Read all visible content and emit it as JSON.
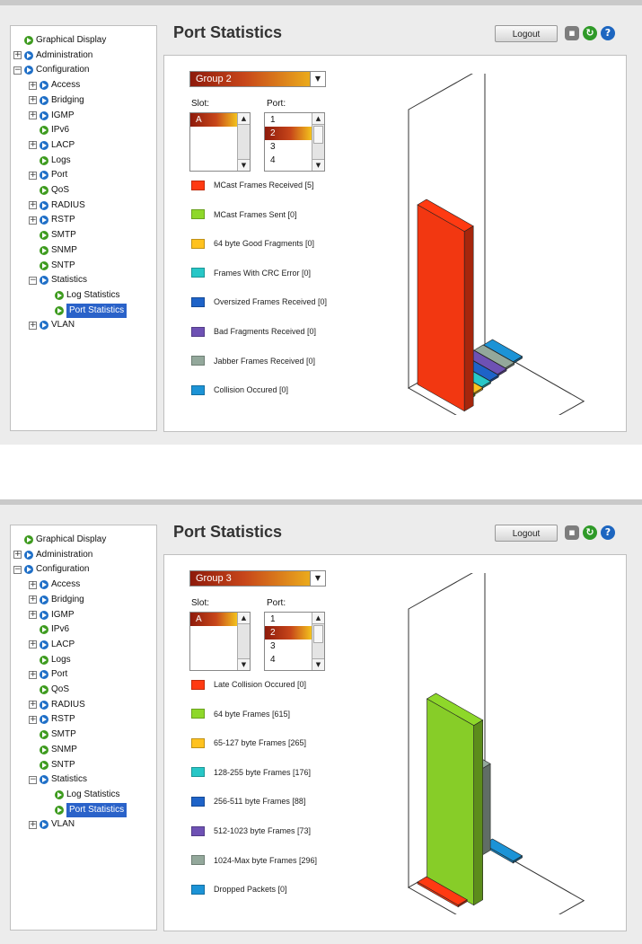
{
  "panels": [
    {
      "nav": [
        {
          "label": "Graphical Display",
          "indent": 0,
          "expander": "",
          "icon": "green"
        },
        {
          "label": "Administration",
          "indent": 0,
          "expander": "+",
          "icon": "blue"
        },
        {
          "label": "Configuration",
          "indent": 0,
          "expander": "-",
          "icon": "blue"
        },
        {
          "label": "Access",
          "indent": 1,
          "expander": "+",
          "icon": "blue"
        },
        {
          "label": "Bridging",
          "indent": 1,
          "expander": "+",
          "icon": "blue"
        },
        {
          "label": "IGMP",
          "indent": 1,
          "expander": "+",
          "icon": "blue"
        },
        {
          "label": "IPv6",
          "indent": 1,
          "expander": "",
          "icon": "green"
        },
        {
          "label": "LACP",
          "indent": 1,
          "expander": "+",
          "icon": "blue"
        },
        {
          "label": "Logs",
          "indent": 1,
          "expander": "",
          "icon": "green"
        },
        {
          "label": "Port",
          "indent": 1,
          "expander": "+",
          "icon": "blue"
        },
        {
          "label": "QoS",
          "indent": 1,
          "expander": "",
          "icon": "green"
        },
        {
          "label": "RADIUS",
          "indent": 1,
          "expander": "+",
          "icon": "blue"
        },
        {
          "label": "RSTP",
          "indent": 1,
          "expander": "+",
          "icon": "blue"
        },
        {
          "label": "SMTP",
          "indent": 1,
          "expander": "",
          "icon": "green"
        },
        {
          "label": "SNMP",
          "indent": 1,
          "expander": "",
          "icon": "green"
        },
        {
          "label": "SNTP",
          "indent": 1,
          "expander": "",
          "icon": "green"
        },
        {
          "label": "Statistics",
          "indent": 1,
          "expander": "-",
          "icon": "blue"
        },
        {
          "label": "Log Statistics",
          "indent": 2,
          "expander": "",
          "icon": "green"
        },
        {
          "label": "Port Statistics",
          "indent": 2,
          "expander": "",
          "icon": "green",
          "selected": true
        },
        {
          "label": "VLAN",
          "indent": 1,
          "expander": "+",
          "icon": "blue"
        }
      ],
      "title": "Port Statistics",
      "logout": "Logout",
      "group": "Group 2",
      "slot_label": "Slot:",
      "port_label": "Port:",
      "slots": [
        "A"
      ],
      "slot_selected": 0,
      "ports": [
        "1",
        "2",
        "3",
        "4"
      ],
      "port_selected": 1,
      "chart_data": {
        "type": "bar",
        "categories": [
          "MCast Frames Received [5]",
          "MCast Frames Sent [0]",
          "64 byte Good Fragments [0]",
          "Frames With CRC Error [0]",
          "Oversized Frames Received [0]",
          "Bad Fragments Received [0]",
          "Jabber Frames Received [0]",
          "Collision Occured [0]"
        ],
        "values": [
          5,
          0,
          0,
          0,
          0,
          0,
          0,
          0
        ],
        "colors": [
          "#ff3a12",
          "#8ed82a",
          "#ffc21f",
          "#27c7c7",
          "#1e63c8",
          "#6e51b4",
          "#93a89b",
          "#1c93d6"
        ]
      }
    },
    {
      "nav": [
        {
          "label": "Graphical Display",
          "indent": 0,
          "expander": "",
          "icon": "green"
        },
        {
          "label": "Administration",
          "indent": 0,
          "expander": "+",
          "icon": "blue"
        },
        {
          "label": "Configuration",
          "indent": 0,
          "expander": "-",
          "icon": "blue"
        },
        {
          "label": "Access",
          "indent": 1,
          "expander": "+",
          "icon": "blue"
        },
        {
          "label": "Bridging",
          "indent": 1,
          "expander": "+",
          "icon": "blue"
        },
        {
          "label": "IGMP",
          "indent": 1,
          "expander": "+",
          "icon": "blue"
        },
        {
          "label": "IPv6",
          "indent": 1,
          "expander": "",
          "icon": "green"
        },
        {
          "label": "LACP",
          "indent": 1,
          "expander": "+",
          "icon": "blue"
        },
        {
          "label": "Logs",
          "indent": 1,
          "expander": "",
          "icon": "green"
        },
        {
          "label": "Port",
          "indent": 1,
          "expander": "+",
          "icon": "blue"
        },
        {
          "label": "QoS",
          "indent": 1,
          "expander": "",
          "icon": "green"
        },
        {
          "label": "RADIUS",
          "indent": 1,
          "expander": "+",
          "icon": "blue"
        },
        {
          "label": "RSTP",
          "indent": 1,
          "expander": "+",
          "icon": "blue"
        },
        {
          "label": "SMTP",
          "indent": 1,
          "expander": "",
          "icon": "green"
        },
        {
          "label": "SNMP",
          "indent": 1,
          "expander": "",
          "icon": "green"
        },
        {
          "label": "SNTP",
          "indent": 1,
          "expander": "",
          "icon": "green"
        },
        {
          "label": "Statistics",
          "indent": 1,
          "expander": "-",
          "icon": "blue"
        },
        {
          "label": "Log Statistics",
          "indent": 2,
          "expander": "",
          "icon": "green"
        },
        {
          "label": "Port Statistics",
          "indent": 2,
          "expander": "",
          "icon": "green",
          "selected": true
        },
        {
          "label": "VLAN",
          "indent": 1,
          "expander": "+",
          "icon": "blue"
        }
      ],
      "title": "Port Statistics",
      "logout": "Logout",
      "group": "Group 3",
      "slot_label": "Slot:",
      "port_label": "Port:",
      "slots": [
        "A"
      ],
      "slot_selected": 0,
      "ports": [
        "1",
        "2",
        "3",
        "4"
      ],
      "port_selected": 1,
      "chart_data": {
        "type": "bar",
        "categories": [
          "Late Collision Occured [0]",
          "64 byte Frames [615]",
          "65-127 byte Frames [265]",
          "128-255 byte Frames [176]",
          "256-511 byte Frames [88]",
          "512-1023 byte Frames [73]",
          "1024-Max byte Frames [296]",
          "Dropped Packets [0]"
        ],
        "values": [
          0,
          615,
          265,
          176,
          88,
          73,
          296,
          0
        ],
        "colors": [
          "#ff3a12",
          "#8ed82a",
          "#ffc21f",
          "#27c7c7",
          "#1e63c8",
          "#6e51b4",
          "#93a89b",
          "#1c93d6"
        ]
      }
    }
  ]
}
